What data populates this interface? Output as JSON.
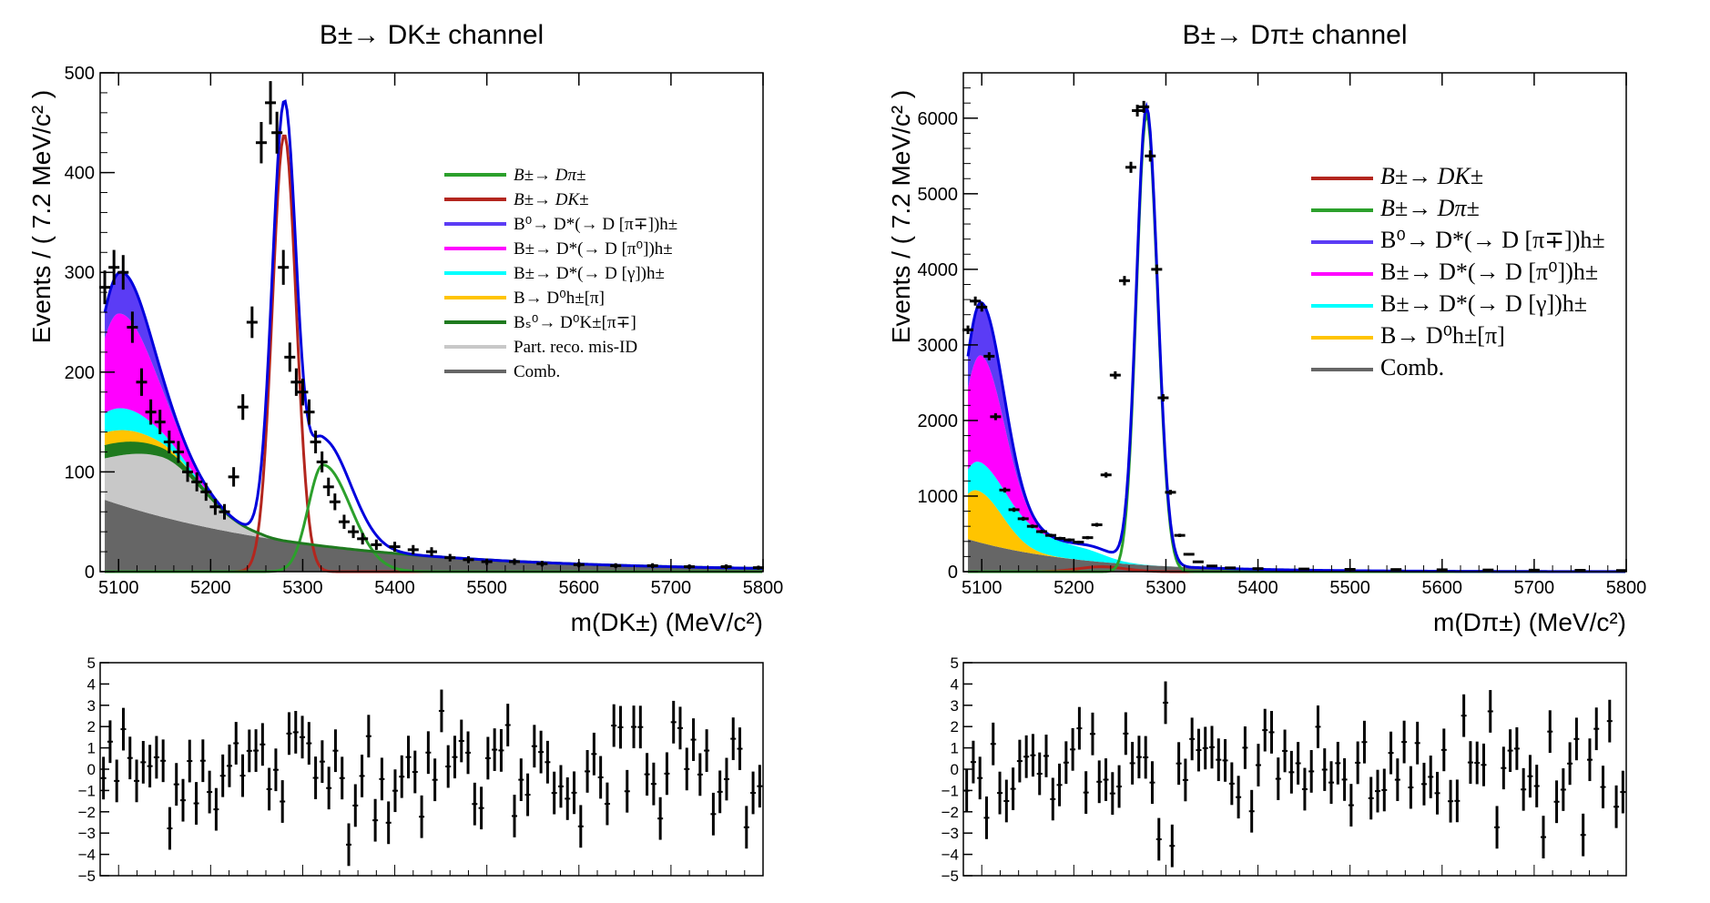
{
  "colors": {
    "dpi": "#2ca02c",
    "dk": "#b3261e",
    "b0": "#5b3cf5",
    "pi0": "#ff00ff",
    "gamma": "#00ffff",
    "dpipi": "#ffc400",
    "bs": "#1f7a1f",
    "partreco": "#c8c8c8",
    "comb": "#666666",
    "total": "#0000dd"
  },
  "chart_data": [
    {
      "type": "line",
      "title": "B±→ DK± channel",
      "xlabel": "m(DK±) (MeV/c²)",
      "ylabel": "Events / ( 7.2 MeV/c² )",
      "xlim": [
        5080,
        5800
      ],
      "ylim": [
        0,
        500
      ],
      "xticks": [
        "5100",
        "5200",
        "5300",
        "5400",
        "5500",
        "5600",
        "5700",
        "5800"
      ],
      "yticks": [
        "0",
        "100",
        "200",
        "300",
        "400",
        "500"
      ],
      "legend": [
        {
          "label": "B±→ Dπ±",
          "color": "#2ca02c",
          "italic": true
        },
        {
          "label": "B±→ DK±",
          "color": "#b3261e",
          "italic": true
        },
        {
          "label": "B⁰→ D*(→ D [π∓])h±",
          "color": "#5b3cf5",
          "italic": false
        },
        {
          "label": "B±→ D*(→ D [π⁰])h±",
          "color": "#ff00ff",
          "italic": false
        },
        {
          "label": "B±→ D*(→ D [γ])h±",
          "color": "#00ffff",
          "italic": false
        },
        {
          "label": "B→ D⁰h±[π]",
          "color": "#ffc400",
          "italic": false
        },
        {
          "label": "Bₛ⁰→ D⁰K±[π∓]",
          "color": "#1f7a1f",
          "italic": false
        },
        {
          "label": "Part. reco. mis-ID",
          "color": "#c8c8c8",
          "italic": false
        },
        {
          "label": "Comb.",
          "color": "#666666",
          "italic": false
        }
      ],
      "legend_position": "top-right",
      "peak_mass": 5280,
      "peak_height": 478,
      "misid_peak_mass": 5322,
      "misid_peak_height": 107,
      "data_points_x": [
        5085,
        5095,
        5105,
        5115,
        5125,
        5135,
        5145,
        5155,
        5165,
        5175,
        5185,
        5195,
        5205,
        5215,
        5225,
        5235,
        5245,
        5255,
        5265,
        5272,
        5279,
        5286,
        5293,
        5300,
        5307,
        5314,
        5321,
        5328,
        5335,
        5345,
        5355,
        5365,
        5380,
        5400,
        5420,
        5440,
        5460,
        5480,
        5500,
        5530,
        5560,
        5600,
        5640,
        5680,
        5720,
        5760,
        5795
      ],
      "data_points_y": [
        285,
        305,
        300,
        245,
        190,
        160,
        150,
        130,
        120,
        100,
        90,
        80,
        65,
        60,
        95,
        165,
        250,
        430,
        470,
        440,
        305,
        215,
        190,
        180,
        160,
        130,
        110,
        85,
        70,
        50,
        40,
        33,
        27,
        25,
        22,
        20,
        14,
        12,
        10,
        10,
        8,
        7,
        6,
        6,
        5,
        5,
        4
      ],
      "residual_ylim": [
        -5,
        5
      ],
      "residual_yticks": [
        "−5",
        "−4",
        "−3",
        "−2",
        "−1",
        "0",
        "1",
        "2",
        "3",
        "4",
        "5"
      ]
    },
    {
      "type": "line",
      "title": "B±→ Dπ± channel",
      "xlabel": "m(Dπ±) (MeV/c²)",
      "ylabel": "Events / ( 7.2 MeV/c² )",
      "xlim": [
        5080,
        5800
      ],
      "ylim": [
        0,
        6600
      ],
      "xticks": [
        "5100",
        "5200",
        "5300",
        "5400",
        "5500",
        "5600",
        "5700",
        "5800"
      ],
      "yticks": [
        "0",
        "1000",
        "2000",
        "3000",
        "4000",
        "5000",
        "6000"
      ],
      "legend": [
        {
          "label": "B±→ DK±",
          "color": "#b3261e",
          "italic": true
        },
        {
          "label": "B±→ Dπ±",
          "color": "#2ca02c",
          "italic": true
        },
        {
          "label": "B⁰→ D*(→ D [π∓])h±",
          "color": "#5b3cf5",
          "italic": false
        },
        {
          "label": "B±→ D*(→ D [π⁰])h±",
          "color": "#ff00ff",
          "italic": false
        },
        {
          "label": "B±→ D*(→ D [γ])h±",
          "color": "#00ffff",
          "italic": false
        },
        {
          "label": "B→ D⁰h±[π]",
          "color": "#ffc400",
          "italic": false
        },
        {
          "label": "Comb.",
          "color": "#666666",
          "italic": false
        }
      ],
      "legend_position": "top-right",
      "peak_mass": 5279,
      "peak_height": 6150,
      "data_points_x": [
        5085,
        5093,
        5100,
        5108,
        5115,
        5125,
        5135,
        5145,
        5155,
        5165,
        5175,
        5185,
        5195,
        5205,
        5215,
        5225,
        5235,
        5245,
        5255,
        5262,
        5269,
        5276,
        5283,
        5290,
        5297,
        5305,
        5315,
        5325,
        5335,
        5350,
        5370,
        5400,
        5450,
        5500,
        5550,
        5600,
        5650,
        5700,
        5750,
        5795
      ],
      "data_points_y": [
        3200,
        3580,
        3500,
        2850,
        2050,
        1080,
        820,
        700,
        600,
        530,
        480,
        440,
        420,
        390,
        450,
        620,
        1280,
        2600,
        3850,
        5350,
        6100,
        6150,
        5500,
        4000,
        2300,
        1050,
        480,
        230,
        130,
        75,
        50,
        40,
        35,
        30,
        28,
        25,
        22,
        20,
        18,
        15
      ],
      "residual_ylim": [
        -5,
        5
      ],
      "residual_yticks": [
        "−5",
        "−4",
        "−3",
        "−2",
        "−1",
        "0",
        "1",
        "2",
        "3",
        "4",
        "5"
      ]
    }
  ]
}
